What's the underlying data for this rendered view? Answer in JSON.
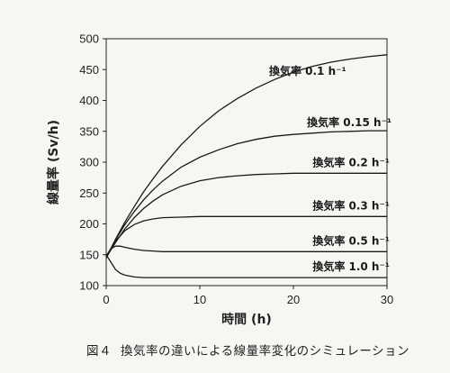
{
  "chart_data": {
    "type": "line",
    "xlabel": "時間 (h)",
    "ylabel": "線量率 (Sv/h)",
    "xlim": [
      0,
      30
    ],
    "ylim": [
      100,
      500
    ],
    "xticks": [
      "0",
      "10",
      "20",
      "30"
    ],
    "yticks": [
      "100",
      "150",
      "200",
      "250",
      "300",
      "350",
      "400",
      "450",
      "500"
    ],
    "grid": false,
    "series": [
      {
        "name": "換気率 0.1 h⁻¹",
        "x": [
          0,
          0.5,
          1,
          2,
          3,
          4,
          5,
          6,
          8,
          10,
          12,
          14,
          16,
          18,
          20,
          22,
          24,
          26,
          28,
          30
        ],
        "y": [
          145,
          160,
          175,
          203,
          228,
          252,
          273,
          293,
          328,
          358,
          383,
          403,
          420,
          434,
          446,
          455,
          462,
          467,
          471,
          474
        ]
      },
      {
        "name": "換気率 0.15 h⁻¹",
        "x": [
          0,
          0.5,
          1,
          2,
          3,
          4,
          5,
          6,
          8,
          10,
          12,
          14,
          16,
          18,
          20,
          22,
          24,
          26,
          28,
          30
        ],
        "y": [
          145,
          160,
          174,
          199,
          220,
          239,
          255,
          269,
          292,
          308,
          320,
          330,
          337,
          342,
          345,
          347,
          349,
          350,
          351,
          351
        ]
      },
      {
        "name": "換気率 0.2 h⁻¹",
        "x": [
          0,
          0.5,
          1,
          2,
          3,
          4,
          5,
          6,
          8,
          10,
          12,
          14,
          16,
          18,
          20,
          22,
          24,
          26,
          28,
          30
        ],
        "y": [
          145,
          158,
          170,
          192,
          210,
          225,
          237,
          247,
          261,
          270,
          275,
          278,
          280,
          281,
          282,
          282,
          282,
          282,
          282,
          282
        ]
      },
      {
        "name": "換気率 0.3 h⁻¹",
        "x": [
          0,
          0.5,
          1,
          2,
          3,
          4,
          5,
          6,
          8,
          10,
          12,
          14,
          16,
          18,
          20,
          22,
          24,
          26,
          28,
          30
        ],
        "y": [
          145,
          160,
          172,
          189,
          199,
          205,
          208,
          210,
          211,
          212,
          212,
          212,
          212,
          212,
          212,
          212,
          212,
          212,
          212,
          212
        ]
      },
      {
        "name": "換気率 0.5 h⁻¹",
        "x": [
          0,
          0.5,
          1,
          1.5,
          2,
          3,
          4,
          5,
          6,
          8,
          10,
          12,
          15,
          20,
          25,
          30
        ],
        "y": [
          148,
          160,
          164,
          164,
          162,
          159,
          157,
          156,
          155,
          155,
          155,
          155,
          155,
          155,
          155,
          155
        ]
      },
      {
        "name": "換気率 1.0 h⁻¹",
        "x": [
          0,
          0.5,
          1,
          1.5,
          2,
          3,
          4,
          5,
          6,
          8,
          10,
          15,
          20,
          25,
          30
        ],
        "y": [
          150,
          138,
          126,
          120,
          117,
          114,
          113,
          113,
          113,
          113,
          113,
          113,
          113,
          113,
          113
        ]
      }
    ]
  },
  "caption": {
    "label": "図４",
    "text": "換気率の違いによる線量率変化のシミュレーション"
  }
}
